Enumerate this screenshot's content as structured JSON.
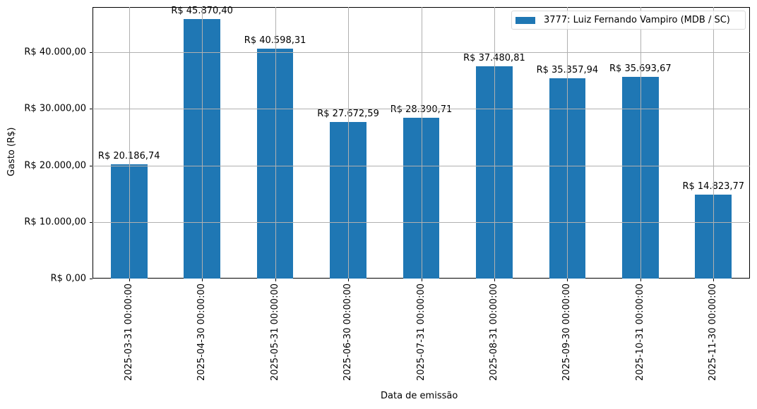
{
  "chart_data": {
    "type": "bar",
    "title": "",
    "xlabel": "Data de emissão",
    "ylabel": "Gasto (R$)",
    "ylim": [
      0,
      48000
    ],
    "grid": true,
    "legend_position": "upper right",
    "categories": [
      "2025-03-31 00:00:00",
      "2025-04-30 00:00:00",
      "2025-05-31 00:00:00",
      "2025-06-30 00:00:00",
      "2025-07-31 00:00:00",
      "2025-08-31 00:00:00",
      "2025-09-30 00:00:00",
      "2025-10-31 00:00:00",
      "2025-11-30 00:00:00"
    ],
    "series": [
      {
        "name": "3777: Luiz Fernando Vampiro (MDB / SC)",
        "color": "#1f77b4",
        "values": [
          20186.74,
          45870.4,
          40598.31,
          27672.59,
          28390.71,
          37480.81,
          35357.94,
          35693.67,
          14823.77
        ],
        "labels": [
          "R$ 20.186,74",
          "R$ 45.870,40",
          "R$ 40.598,31",
          "R$ 27.672,59",
          "R$ 28.390,71",
          "R$ 37.480,81",
          "R$ 35.357,94",
          "R$ 35.693,67",
          "R$ 14.823,77"
        ]
      }
    ],
    "yticks": [
      0,
      10000,
      20000,
      30000,
      40000
    ],
    "ytick_labels": [
      "R$ 0,00",
      "R$ 10.000,00",
      "R$ 20.000,00",
      "R$ 30.000,00",
      "R$ 40.000,00"
    ]
  },
  "colors": {
    "bar": "#1f77b4",
    "grid": "#b0b0b0"
  }
}
